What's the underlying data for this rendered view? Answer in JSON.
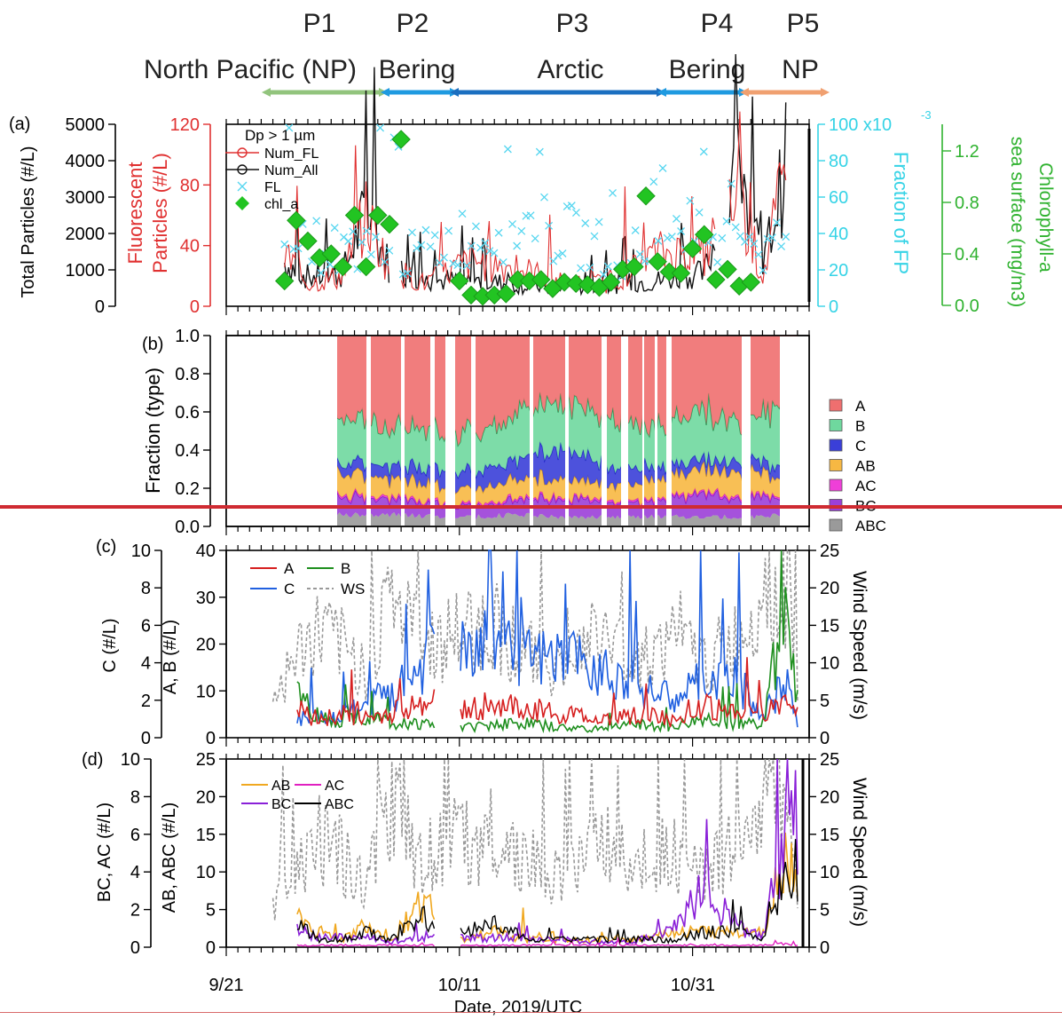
{
  "periods": [
    {
      "code": "P1",
      "region": "North Pacific (NP)",
      "color": "#92c47d",
      "start": "2019-09-23",
      "end": "2019-10-01"
    },
    {
      "code": "P2",
      "region": "Bering",
      "color": "#1f9ae0",
      "start": "2019-10-01",
      "end": "2019-10-04"
    },
    {
      "code": "P3",
      "region": "Arctic",
      "color": "#1b6fc0",
      "start": "2019-10-04",
      "end": "2019-10-27"
    },
    {
      "code": "P4",
      "region": "Bering",
      "color": "#1f9ae0",
      "start": "2019-10-27",
      "end": "2019-11-03"
    },
    {
      "code": "P5",
      "region": "NP",
      "color": "#f0a070",
      "start": "2019-11-03",
      "end": "2019-11-10"
    }
  ],
  "x_axis": {
    "label": "Date, 2019/UTC",
    "ticks": [
      "9/21",
      "10/11",
      "10/31"
    ],
    "range": [
      "2019-09-21",
      "2019-11-10"
    ]
  },
  "panel_a": {
    "tag": "(a)",
    "legend_title": "Dp > 1 µm",
    "left_axis": {
      "label": "Total Particles (#/L)",
      "ticks": [
        "5000",
        "4000",
        "3000",
        "2000",
        "1000",
        "0"
      ]
    },
    "red_axis": {
      "label": "Fluorescent Particles (#/L)",
      "ticks": [
        "120",
        "80",
        "40",
        "0"
      ]
    },
    "cyan_axis": {
      "label": "Fraction of FP",
      "ticks": [
        "100 x10",
        "80",
        "60",
        "40",
        "20",
        "0"
      ],
      "exponent": "-3"
    },
    "green_axis": {
      "label": "Chlorophyll-a in sea surface (mg/m",
      "label_sup": "3",
      "label_end": ")",
      "ticks": [
        "1.2",
        "0.8",
        "0.4",
        "0.0"
      ]
    },
    "legend": [
      "Num_FL",
      "Num_All",
      "FL",
      "chl_a"
    ]
  },
  "panel_b": {
    "tag": "(b)",
    "y_label": "Fraction (type)",
    "ticks": [
      "1.0",
      "0.8",
      "0.6",
      "0.4",
      "0.2",
      "0.0"
    ],
    "legend": [
      {
        "label": "A",
        "color": "#ef6f6f"
      },
      {
        "label": "B",
        "color": "#6fd89e"
      },
      {
        "label": "C",
        "color": "#3a3fd8"
      },
      {
        "label": "AB",
        "color": "#f7b843"
      },
      {
        "label": "AC",
        "color": "#ef3fd8"
      },
      {
        "label": "BC",
        "color": "#9b3fd8"
      },
      {
        "label": "ABC",
        "color": "#9a9a9a"
      }
    ]
  },
  "panel_c": {
    "tag": "(c)",
    "c_axis": {
      "label": "C (#/L)",
      "ticks": [
        "10",
        "8",
        "6",
        "4",
        "2",
        "0"
      ]
    },
    "ab_axis": {
      "label": "A, B (#/L)",
      "ticks": [
        "40",
        "30",
        "20",
        "10",
        "0"
      ]
    },
    "ws_axis": {
      "label": "Wind Speed (m/s)",
      "ticks": [
        "25",
        "20",
        "15",
        "10",
        "5",
        "0"
      ]
    },
    "legend": [
      {
        "label": "A",
        "color": "#d62020"
      },
      {
        "label": "B",
        "color": "#1f8f1f"
      },
      {
        "label": "C",
        "color": "#2060e0"
      },
      {
        "label": "WS",
        "color": "#999999"
      }
    ]
  },
  "panel_d": {
    "tag": "(d)",
    "bc_axis": {
      "label": "BC, AC (#/L)",
      "ticks": [
        "10",
        "8",
        "6",
        "4",
        "2",
        "0"
      ]
    },
    "ab_axis": {
      "label": "AB, ABC (#/L)",
      "ticks": [
        "25",
        "20",
        "15",
        "10",
        "5",
        "0"
      ]
    },
    "ws_axis": {
      "label": "Wind Speed (m/s)",
      "ticks": [
        "25",
        "20",
        "15",
        "10",
        "5",
        "0"
      ]
    },
    "legend": [
      {
        "label": "AB",
        "color": "#f0a820"
      },
      {
        "label": "AC",
        "color": "#e020c0"
      },
      {
        "label": "BC",
        "color": "#8a20d8"
      },
      {
        "label": "ABC",
        "color": "#000000"
      }
    ]
  },
  "chart_data": [
    {
      "type": "scatter",
      "panel": "a",
      "title": "",
      "series": [
        {
          "name": "chl_a",
          "unit": "mg/m3",
          "x": [
            "2019-09-26",
            "2019-09-27",
            "2019-09-28",
            "2019-09-29",
            "2019-09-30",
            "2019-10-01",
            "2019-10-02",
            "2019-10-03",
            "2019-10-04",
            "2019-10-05",
            "2019-10-06",
            "2019-10-11",
            "2019-10-12",
            "2019-10-13",
            "2019-10-14",
            "2019-10-15",
            "2019-10-16",
            "2019-10-17",
            "2019-10-18",
            "2019-10-19",
            "2019-10-20",
            "2019-10-21",
            "2019-10-22",
            "2019-10-23",
            "2019-10-24",
            "2019-10-25",
            "2019-10-26",
            "2019-10-27",
            "2019-10-28",
            "2019-10-29",
            "2019-10-30",
            "2019-10-31",
            "2019-11-01",
            "2019-11-02",
            "2019-11-03",
            "2019-11-04",
            "2019-11-05"
          ],
          "y": [
            0.19,
            0.66,
            0.5,
            0.37,
            0.4,
            0.3,
            0.7,
            0.3,
            0.7,
            0.63,
            1.29,
            0.19,
            0.08,
            0.07,
            0.08,
            0.09,
            0.2,
            0.19,
            0.2,
            0.13,
            0.18,
            0.17,
            0.16,
            0.14,
            0.18,
            0.28,
            0.3,
            0.85,
            0.34,
            0.26,
            0.25,
            0.44,
            0.55,
            0.2,
            0.28,
            0.15,
            0.18
          ]
        }
      ]
    },
    {
      "type": "line",
      "panel": "a",
      "series": [
        {
          "name": "Num_All",
          "x": [
            "2019-09-26",
            "2019-09-28",
            "2019-10-01",
            "2019-10-03",
            "2019-10-05",
            "2019-10-08",
            "2019-10-12",
            "2019-10-16",
            "2019-10-20",
            "2019-10-24",
            "2019-10-28",
            "2019-11-01",
            "2019-11-04",
            "2019-11-06",
            "2019-11-08"
          ],
          "y": [
            1200,
            800,
            900,
            2600,
            1100,
            700,
            700,
            600,
            500,
            600,
            700,
            900,
            3800,
            1000,
            3900
          ]
        },
        {
          "name": "Num_FL",
          "x": [
            "2019-09-26",
            "2019-09-28",
            "2019-10-01",
            "2019-10-03",
            "2019-10-05",
            "2019-10-08",
            "2019-10-12",
            "2019-10-16",
            "2019-10-20",
            "2019-10-24",
            "2019-10-28",
            "2019-11-01",
            "2019-11-04",
            "2019-11-06",
            "2019-11-08"
          ],
          "y": [
            35,
            15,
            20,
            60,
            25,
            15,
            30,
            25,
            15,
            15,
            35,
            35,
            70,
            20,
            85
          ]
        },
        {
          "name": "FL",
          "x": [
            "2019-09-26",
            "2019-09-28",
            "2019-10-01",
            "2019-10-03",
            "2019-10-05",
            "2019-10-08",
            "2019-10-12",
            "2019-10-16",
            "2019-10-20",
            "2019-10-24",
            "2019-10-28",
            "2019-11-01",
            "2019-11-04",
            "2019-11-06",
            "2019-11-08"
          ],
          "y": [
            0.055,
            0.035,
            0.03,
            0.04,
            0.025,
            0.03,
            0.04,
            0.045,
            0.04,
            0.03,
            0.03,
            0.04,
            0.05,
            0.03,
            0.04
          ]
        }
      ]
    },
    {
      "type": "area",
      "panel": "b",
      "stacked": true,
      "categories": [
        "A",
        "B",
        "C",
        "AB",
        "AC",
        "BC",
        "ABC"
      ],
      "x": [
        "2019-09-27",
        "2019-10-01",
        "2019-10-05",
        "2019-10-12",
        "2019-10-16",
        "2019-10-20",
        "2019-10-24",
        "2019-10-28",
        "2019-11-01",
        "2019-11-05",
        "2019-11-09"
      ],
      "series": [
        {
          "name": "ABC",
          "values": [
            0.05,
            0.06,
            0.06,
            0.05,
            0.06,
            0.05,
            0.05,
            0.05,
            0.05,
            0.05,
            0.06
          ]
        },
        {
          "name": "BC",
          "values": [
            0.13,
            0.1,
            0.08,
            0.06,
            0.08,
            0.1,
            0.07,
            0.08,
            0.12,
            0.1,
            0.1
          ]
        },
        {
          "name": "AC",
          "values": [
            0.01,
            0.01,
            0.01,
            0.01,
            0.01,
            0.01,
            0.01,
            0.01,
            0.01,
            0.01,
            0.01
          ]
        },
        {
          "name": "AB",
          "values": [
            0.22,
            0.12,
            0.1,
            0.08,
            0.1,
            0.09,
            0.08,
            0.1,
            0.12,
            0.12,
            0.1
          ]
        },
        {
          "name": "C",
          "values": [
            0.02,
            0.05,
            0.07,
            0.1,
            0.1,
            0.15,
            0.1,
            0.06,
            0.05,
            0.06,
            0.06
          ]
        },
        {
          "name": "B",
          "values": [
            0.37,
            0.26,
            0.2,
            0.2,
            0.25,
            0.25,
            0.24,
            0.22,
            0.25,
            0.2,
            0.42
          ]
        },
        {
          "name": "A",
          "values": [
            0.2,
            0.4,
            0.48,
            0.5,
            0.4,
            0.35,
            0.45,
            0.48,
            0.4,
            0.46,
            0.25
          ]
        }
      ]
    },
    {
      "type": "line",
      "panel": "c",
      "x": [
        "2019-09-25",
        "2019-09-27",
        "2019-09-29",
        "2019-10-01",
        "2019-10-03",
        "2019-10-05",
        "2019-10-08",
        "2019-10-11",
        "2019-10-14",
        "2019-10-17",
        "2019-10-20",
        "2019-10-23",
        "2019-10-26",
        "2019-10-29",
        "2019-11-01",
        "2019-11-04",
        "2019-11-06",
        "2019-11-08",
        "2019-11-09"
      ],
      "series": [
        {
          "name": "A",
          "values": [
            null,
            6,
            4,
            5,
            4,
            5,
            8,
            6,
            7,
            6,
            5,
            4,
            5,
            4,
            7,
            5,
            5,
            8,
            8
          ]
        },
        {
          "name": "B",
          "values": [
            null,
            10,
            4,
            4,
            5,
            3,
            3,
            2,
            3,
            3,
            2,
            2,
            3,
            2,
            4,
            3,
            3,
            30,
            10
          ]
        },
        {
          "name": "C",
          "values": [
            null,
            1,
            1,
            1,
            2,
            2,
            4,
            5,
            5,
            4,
            4,
            4,
            3,
            2,
            3,
            3,
            1,
            3,
            1
          ]
        },
        {
          "name": "WS",
          "values": [
            5,
            11,
            14,
            12,
            9,
            19,
            12,
            14,
            15,
            11,
            9,
            14,
            10,
            13,
            10,
            13,
            21,
            20,
            8
          ]
        }
      ]
    },
    {
      "type": "line",
      "panel": "d",
      "x": [
        "2019-09-25",
        "2019-09-27",
        "2019-09-29",
        "2019-10-01",
        "2019-10-03",
        "2019-10-05",
        "2019-10-08",
        "2019-10-11",
        "2019-10-14",
        "2019-10-17",
        "2019-10-20",
        "2019-10-23",
        "2019-10-26",
        "2019-10-29",
        "2019-11-01",
        "2019-11-04",
        "2019-11-06",
        "2019-11-08",
        "2019-11-09"
      ],
      "series": [
        {
          "name": "AB",
          "values": [
            null,
            4,
            2,
            1,
            3,
            1,
            6,
            1,
            2,
            1,
            1,
            1,
            1,
            2,
            2,
            2,
            2,
            12,
            8
          ]
        },
        {
          "name": "AC",
          "values": [
            null,
            0.1,
            0.1,
            0.1,
            0.1,
            0.1,
            0.1,
            0.1,
            0.1,
            0.1,
            0.1,
            0.1,
            0.1,
            0.1,
            0.1,
            0.1,
            0.1,
            0.2,
            0.1
          ]
        },
        {
          "name": "BC",
          "values": [
            null,
            1,
            0.5,
            0.5,
            0.5,
            0.3,
            0.5,
            0.5,
            0.5,
            0.5,
            0.3,
            0.3,
            0.3,
            1,
            3,
            1,
            0.5,
            6,
            7
          ]
        },
        {
          "name": "ABC",
          "values": [
            null,
            3,
            1,
            1,
            2,
            1,
            4,
            2,
            3,
            1,
            1,
            1,
            1,
            1,
            2,
            2,
            1,
            9,
            5
          ]
        },
        {
          "name": "WS",
          "values": [
            5,
            11,
            14,
            12,
            9,
            19,
            12,
            14,
            15,
            11,
            9,
            14,
            10,
            13,
            10,
            13,
            21,
            20,
            8
          ]
        }
      ]
    }
  ]
}
